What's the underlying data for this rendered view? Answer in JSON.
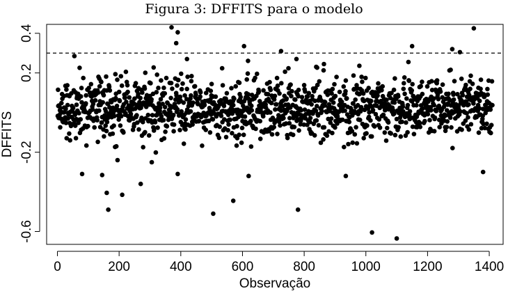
{
  "chart_data": {
    "type": "scatter",
    "title": "Figura 3: DFFITS para o modelo",
    "xlabel": "Observação",
    "ylabel": "DFFITS",
    "xlim": [
      -35,
      1445
    ],
    "ylim": [
      -0.665,
      0.445
    ],
    "xticks": [
      0,
      200,
      400,
      600,
      800,
      1000,
      1200,
      1400
    ],
    "yticks": [
      -0.6,
      -0.2,
      0.2,
      0.4
    ],
    "ytick_labels": [
      "-0.6",
      "-0.2",
      "0.2",
      "0.4"
    ],
    "reference_line": {
      "y": 0.3,
      "style": "dashed"
    },
    "grid": false,
    "n_points": 1410,
    "outliers": [
      {
        "x": 55,
        "y": 0.285
      },
      {
        "x": 370,
        "y": 0.43
      },
      {
        "x": 390,
        "y": 0.405
      },
      {
        "x": 385,
        "y": 0.35
      },
      {
        "x": 420,
        "y": 0.27
      },
      {
        "x": 605,
        "y": 0.335
      },
      {
        "x": 725,
        "y": 0.31
      },
      {
        "x": 1150,
        "y": 0.335
      },
      {
        "x": 1280,
        "y": 0.32
      },
      {
        "x": 1305,
        "y": 0.305
      },
      {
        "x": 1350,
        "y": 0.425
      },
      {
        "x": 775,
        "y": 0.27
      },
      {
        "x": 160,
        "y": -0.405
      },
      {
        "x": 165,
        "y": -0.49
      },
      {
        "x": 210,
        "y": -0.415
      },
      {
        "x": 505,
        "y": -0.51
      },
      {
        "x": 570,
        "y": -0.445
      },
      {
        "x": 780,
        "y": -0.49
      },
      {
        "x": 1020,
        "y": -0.605
      },
      {
        "x": 1100,
        "y": -0.635
      },
      {
        "x": 935,
        "y": -0.32
      },
      {
        "x": 620,
        "y": -0.32
      },
      {
        "x": 270,
        "y": -0.36
      },
      {
        "x": 145,
        "y": -0.315
      },
      {
        "x": 1380,
        "y": -0.3
      },
      {
        "x": 80,
        "y": -0.31
      },
      {
        "x": 390,
        "y": -0.31
      }
    ]
  }
}
